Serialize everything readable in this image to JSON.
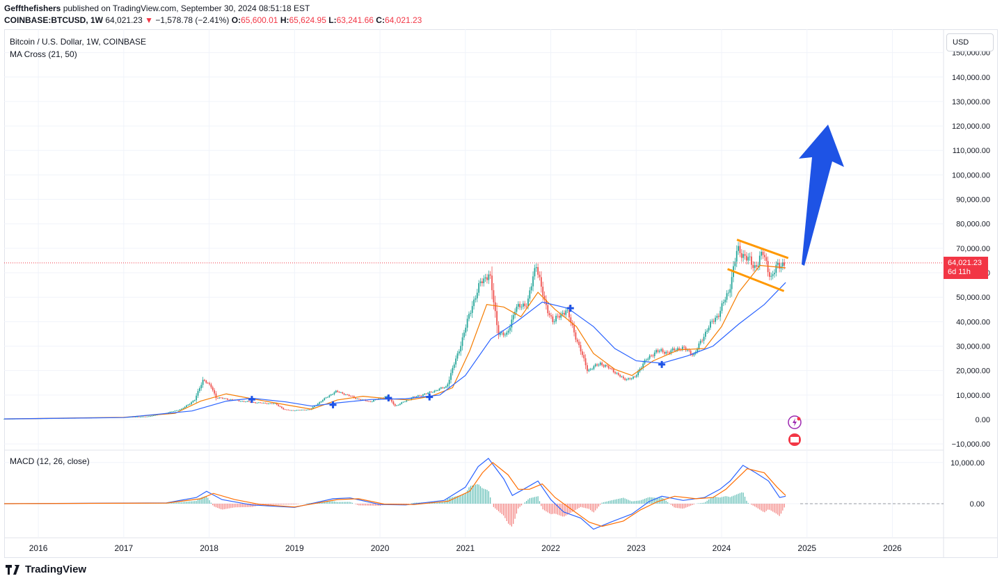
{
  "header": {
    "publisher": "Geffthefishers",
    "published_text": "published on TradingView.com, September 30, 2024 08:51:18 EST",
    "symbol": "COINBASE:BTCUSD, 1W",
    "last": "64,021.23",
    "change_arrow": "▼",
    "change": "−1,578.78 (−2.41%)",
    "o_label": "O:",
    "o_value": "65,600.01",
    "h_label": "H:",
    "h_value": "65,624.95",
    "l_label": "L:",
    "l_value": "63,241.66",
    "c_label": "C:",
    "c_value": "64,021.23"
  },
  "legend": {
    "title": "Bitcoin / U.S. Dollar, 1W, COINBASE",
    "indicator": "MA Cross (21, 50)",
    "macd": "MACD (12, 26, close)"
  },
  "currency_button": "USD",
  "price_tag": {
    "price": "64,021.23",
    "countdown": "6d 11h"
  },
  "brand": {
    "name": "TradingView",
    "icon": "tradingview-logo-icon"
  },
  "colors": {
    "up": "#26a69a",
    "down": "#ef5350",
    "ma_fast": "#f57c00",
    "ma_slow": "#2962ff",
    "macd": "#2962ff",
    "signal": "#ff6d00",
    "annotation": "#1e53e5",
    "channel": "#ff9800",
    "price_line": "#f23645"
  },
  "chart_data": [
    {
      "type": "line",
      "title": "Bitcoin / U.S. Dollar, 1W, COINBASE",
      "y_ticks": [
        -10000,
        0,
        10000,
        20000,
        30000,
        40000,
        50000,
        60000,
        70000,
        80000,
        90000,
        100000,
        110000,
        120000,
        130000,
        140000,
        150000
      ],
      "y_tick_labels": [
        "−10,000.00",
        "0.00",
        "10,000.00",
        "20,000.00",
        "30,000.00",
        "40,000.00",
        "50,000.00",
        "60,000.00",
        "70,000.00",
        "80,000.00",
        "90,000.00",
        "100,000.00",
        "110,000.00",
        "120,000.00",
        "130,000.00",
        "140,000.00",
        "150,000.00"
      ],
      "x_ticks": [
        2016,
        2017,
        2018,
        2019,
        2020,
        2021,
        2022,
        2023,
        2024,
        2025,
        2026
      ],
      "ylim": [
        -12000,
        153000
      ],
      "xlim": [
        2015.6,
        2026.55
      ],
      "price_series": {
        "name": "BTCUSD",
        "points": [
          [
            2015.6,
            250
          ],
          [
            2016.0,
            430
          ],
          [
            2016.5,
            650
          ],
          [
            2017.0,
            950
          ],
          [
            2017.3,
            1200
          ],
          [
            2017.5,
            2500
          ],
          [
            2017.7,
            4300
          ],
          [
            2017.85,
            8000
          ],
          [
            2017.95,
            16500
          ],
          [
            2018.05,
            13000
          ],
          [
            2018.1,
            9000
          ],
          [
            2018.2,
            8500
          ],
          [
            2018.4,
            7500
          ],
          [
            2018.6,
            6800
          ],
          [
            2018.8,
            6400
          ],
          [
            2018.9,
            4000
          ],
          [
            2019.0,
            3700
          ],
          [
            2019.2,
            4100
          ],
          [
            2019.35,
            8000
          ],
          [
            2019.5,
            11500
          ],
          [
            2019.6,
            10500
          ],
          [
            2019.75,
            8500
          ],
          [
            2019.9,
            7300
          ],
          [
            2020.1,
            9500
          ],
          [
            2020.2,
            5500
          ],
          [
            2020.4,
            9000
          ],
          [
            2020.6,
            11000
          ],
          [
            2020.8,
            13500
          ],
          [
            2020.95,
            29000
          ],
          [
            2021.1,
            47000
          ],
          [
            2021.2,
            56000
          ],
          [
            2021.3,
            60000
          ],
          [
            2021.4,
            36000
          ],
          [
            2021.5,
            34000
          ],
          [
            2021.6,
            45000
          ],
          [
            2021.75,
            48000
          ],
          [
            2021.85,
            64000
          ],
          [
            2021.95,
            47000
          ],
          [
            2022.05,
            40000
          ],
          [
            2022.2,
            45000
          ],
          [
            2022.35,
            30000
          ],
          [
            2022.45,
            20000
          ],
          [
            2022.6,
            23000
          ],
          [
            2022.75,
            20000
          ],
          [
            2022.87,
            16500
          ],
          [
            2023.0,
            17000
          ],
          [
            2023.1,
            23000
          ],
          [
            2023.25,
            28000
          ],
          [
            2023.4,
            27500
          ],
          [
            2023.55,
            29500
          ],
          [
            2023.7,
            26500
          ],
          [
            2023.85,
            37000
          ],
          [
            2023.98,
            43000
          ],
          [
            2024.1,
            52000
          ],
          [
            2024.2,
            69000
          ],
          [
            2024.3,
            67000
          ],
          [
            2024.4,
            62000
          ],
          [
            2024.5,
            68000
          ],
          [
            2024.6,
            58000
          ],
          [
            2024.68,
            63000
          ],
          [
            2024.75,
            64021
          ]
        ]
      },
      "series": [
        {
          "name": "MA 21",
          "points": [
            [
              2015.6,
              260
            ],
            [
              2017.0,
              900
            ],
            [
              2017.6,
              2500
            ],
            [
              2017.9,
              7500
            ],
            [
              2018.2,
              10500
            ],
            [
              2018.5,
              8500
            ],
            [
              2018.9,
              6000
            ],
            [
              2019.2,
              4200
            ],
            [
              2019.5,
              8000
            ],
            [
              2019.8,
              9500
            ],
            [
              2020.1,
              8500
            ],
            [
              2020.35,
              8000
            ],
            [
              2020.6,
              9500
            ],
            [
              2020.85,
              13000
            ],
            [
              2021.05,
              28000
            ],
            [
              2021.25,
              47000
            ],
            [
              2021.45,
              46000
            ],
            [
              2021.65,
              42000
            ],
            [
              2021.85,
              52000
            ],
            [
              2022.05,
              45000
            ],
            [
              2022.3,
              38000
            ],
            [
              2022.5,
              27000
            ],
            [
              2022.75,
              20500
            ],
            [
              2022.95,
              18000
            ],
            [
              2023.2,
              24000
            ],
            [
              2023.5,
              28500
            ],
            [
              2023.8,
              29000
            ],
            [
              2024.0,
              38000
            ],
            [
              2024.2,
              52000
            ],
            [
              2024.45,
              63000
            ],
            [
              2024.75,
              62000
            ]
          ]
        },
        {
          "name": "MA 50",
          "points": [
            [
              2015.6,
              250
            ],
            [
              2017.0,
              800
            ],
            [
              2017.8,
              3500
            ],
            [
              2018.2,
              7500
            ],
            [
              2018.5,
              8700
            ],
            [
              2018.9,
              7200
            ],
            [
              2019.2,
              5500
            ],
            [
              2019.5,
              6800
            ],
            [
              2019.9,
              8200
            ],
            [
              2020.3,
              8500
            ],
            [
              2020.7,
              10000
            ],
            [
              2021.0,
              18000
            ],
            [
              2021.3,
              33000
            ],
            [
              2021.6,
              40000
            ],
            [
              2021.9,
              48000
            ],
            [
              2022.2,
              45500
            ],
            [
              2022.5,
              38000
            ],
            [
              2022.75,
              29000
            ],
            [
              2023.0,
              24000
            ],
            [
              2023.3,
              23000
            ],
            [
              2023.6,
              26000
            ],
            [
              2023.9,
              30000
            ],
            [
              2024.2,
              39000
            ],
            [
              2024.5,
              47000
            ],
            [
              2024.75,
              56000
            ]
          ]
        }
      ],
      "cross_markers": [
        [
          2018.5,
          8200
        ],
        [
          2019.45,
          6000
        ],
        [
          2020.1,
          8800
        ],
        [
          2020.58,
          9200
        ],
        [
          2022.23,
          45500
        ],
        [
          2023.3,
          22500
        ]
      ],
      "channel_upper": [
        [
          2024.18,
          73500
        ],
        [
          2024.78,
          66000
        ]
      ],
      "channel_lower": [
        [
          2024.07,
          61500
        ],
        [
          2024.73,
          52500
        ]
      ],
      "current_price": 64021.23
    },
    {
      "type": "line",
      "title": "MACD (12, 26, close)",
      "y_ticks": [
        0,
        10000
      ],
      "y_tick_labels": [
        "0.00",
        "10,000.00"
      ],
      "ylim": [
        -7500,
        11700
      ],
      "series": [
        {
          "name": "MACD",
          "points": [
            [
              2015.6,
              0
            ],
            [
              2017.5,
              200
            ],
            [
              2017.85,
              1500
            ],
            [
              2017.97,
              3000
            ],
            [
              2018.15,
              1000
            ],
            [
              2018.5,
              -300
            ],
            [
              2019.0,
              -900
            ],
            [
              2019.45,
              1200
            ],
            [
              2019.65,
              1400
            ],
            [
              2020.0,
              -200
            ],
            [
              2020.3,
              -300
            ],
            [
              2020.75,
              800
            ],
            [
              2021.0,
              4000
            ],
            [
              2021.15,
              9000
            ],
            [
              2021.27,
              11000
            ],
            [
              2021.45,
              6000
            ],
            [
              2021.55,
              2000
            ],
            [
              2021.68,
              3500
            ],
            [
              2021.85,
              5500
            ],
            [
              2022.0,
              1000
            ],
            [
              2022.15,
              -2000
            ],
            [
              2022.35,
              -3500
            ],
            [
              2022.5,
              -6200
            ],
            [
              2022.7,
              -4500
            ],
            [
              2022.95,
              -2500
            ],
            [
              2023.15,
              500
            ],
            [
              2023.3,
              1800
            ],
            [
              2023.55,
              800
            ],
            [
              2023.8,
              1500
            ],
            [
              2023.98,
              3500
            ],
            [
              2024.1,
              5500
            ],
            [
              2024.25,
              9300
            ],
            [
              2024.4,
              7500
            ],
            [
              2024.55,
              5500
            ],
            [
              2024.68,
              1500
            ],
            [
              2024.75,
              1800
            ]
          ]
        },
        {
          "name": "Signal",
          "points": [
            [
              2015.6,
              0
            ],
            [
              2017.5,
              150
            ],
            [
              2017.9,
              1200
            ],
            [
              2018.05,
              2500
            ],
            [
              2018.3,
              1000
            ],
            [
              2018.6,
              -200
            ],
            [
              2019.0,
              -800
            ],
            [
              2019.5,
              1000
            ],
            [
              2019.75,
              1200
            ],
            [
              2020.05,
              -100
            ],
            [
              2020.4,
              -200
            ],
            [
              2020.8,
              600
            ],
            [
              2021.05,
              3000
            ],
            [
              2021.2,
              7500
            ],
            [
              2021.32,
              10000
            ],
            [
              2021.5,
              7000
            ],
            [
              2021.62,
              3500
            ],
            [
              2021.75,
              3500
            ],
            [
              2021.9,
              4800
            ],
            [
              2022.05,
              1500
            ],
            [
              2022.25,
              -1500
            ],
            [
              2022.45,
              -4500
            ],
            [
              2022.6,
              -5500
            ],
            [
              2022.85,
              -4200
            ],
            [
              2023.05,
              -1500
            ],
            [
              2023.25,
              500
            ],
            [
              2023.45,
              1800
            ],
            [
              2023.7,
              1200
            ],
            [
              2023.9,
              1500
            ],
            [
              2024.05,
              3500
            ],
            [
              2024.3,
              8500
            ],
            [
              2024.5,
              7500
            ],
            [
              2024.65,
              4000
            ],
            [
              2024.75,
              2000
            ]
          ]
        }
      ]
    }
  ]
}
